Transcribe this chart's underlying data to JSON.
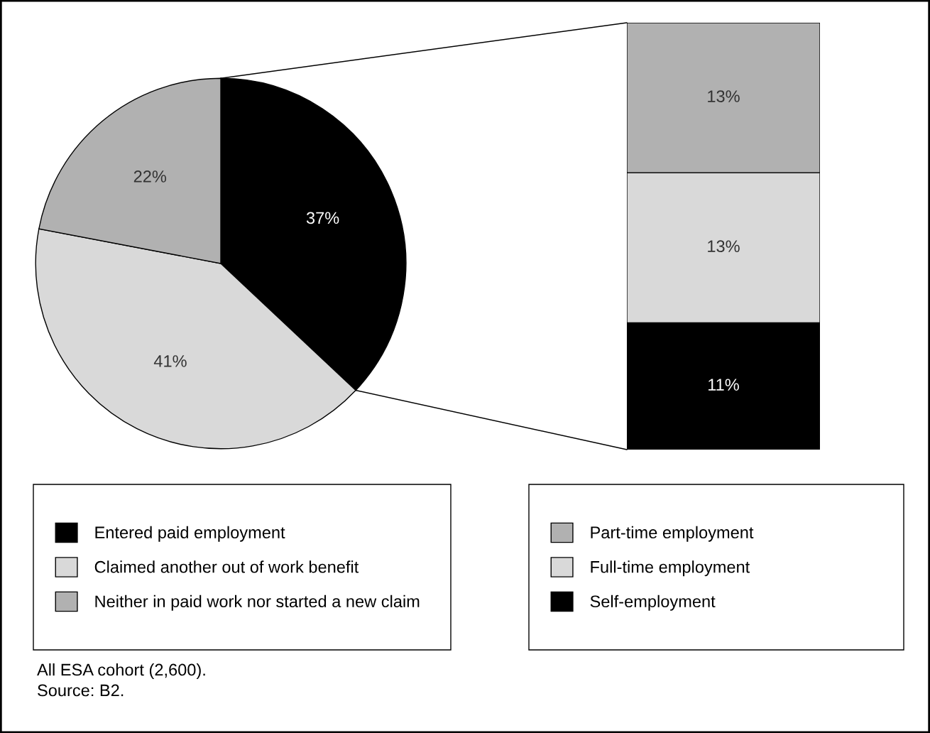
{
  "chart_data": [
    {
      "type": "pie",
      "categories": [
        "Entered paid employment",
        "Claimed another out of work benefit",
        "Neither in paid work nor started a new claim"
      ],
      "values": [
        37,
        41,
        22
      ],
      "colors": [
        "#000000",
        "#d9d9d9",
        "#b1b1b1"
      ],
      "value_labels": [
        "37%",
        "41%",
        "22%"
      ],
      "legend": "bottom",
      "annotations": [
        "All ESA cohort (2,600).",
        "Source: B2."
      ]
    },
    {
      "type": "bar",
      "stacked": true,
      "categories": [
        null
      ],
      "data_labels": true,
      "legend": "bottom",
      "series": [
        {
          "name": "Self-employment",
          "color": "#000000",
          "values": [
            11
          ],
          "value_labels": [
            "11%"
          ]
        },
        {
          "name": "Full-time employment",
          "color": "#d9d9d9",
          "values": [
            13
          ],
          "value_labels": [
            "13%"
          ]
        },
        {
          "name": "Part-time employment",
          "color": "#b1b1b1",
          "values": [
            13
          ],
          "value_labels": [
            "13%"
          ]
        }
      ]
    }
  ]
}
